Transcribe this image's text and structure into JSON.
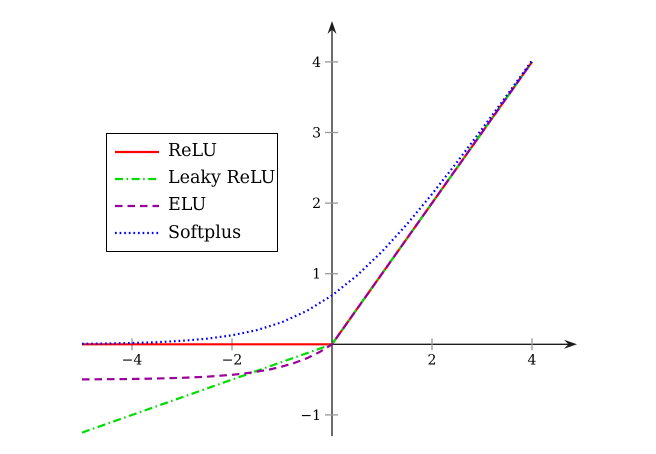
{
  "figure": {
    "background": "#ffffff",
    "axis": {
      "line_color": "#1c1c1c",
      "tick_color": "#999999",
      "tick_label_color": "#000000",
      "x_ticks": [
        -4,
        -2,
        2,
        4
      ],
      "x_tick_labels": [
        "−4",
        "−2",
        "2",
        "4"
      ],
      "y_ticks": [
        -1,
        1,
        2,
        3,
        4
      ],
      "y_tick_labels": [
        "−1",
        "1",
        "2",
        "3",
        "4"
      ]
    },
    "legend": {
      "border_color": "#000000",
      "background": "#ffffff"
    }
  },
  "chart_data": {
    "type": "line",
    "title": "",
    "xlabel": "",
    "ylabel": "",
    "xlim": [
      -5,
      4.9
    ],
    "ylim": [
      -1.3,
      4.58
    ],
    "grid": false,
    "legend_position": "upper left",
    "series": [
      {
        "name": "ReLU",
        "color": "#ff0000",
        "line_style": "solid",
        "x": [
          -5,
          0,
          4
        ],
        "y": [
          0,
          0,
          4
        ]
      },
      {
        "name": "Leaky ReLU",
        "color": "#00dc00",
        "line_style": "dashdot",
        "x": [
          -5,
          0,
          4
        ],
        "y": [
          -1.25,
          0,
          4
        ]
      },
      {
        "name": "ELU",
        "color": "#990099",
        "line_style": "dashed",
        "x": [
          -5,
          -4.5,
          -4,
          -3.5,
          -3,
          -2.5,
          -2,
          -1.75,
          -1.5,
          -1.25,
          -1,
          -0.75,
          -0.5,
          -0.25,
          0,
          4
        ],
        "y": [
          -0.497,
          -0.494,
          -0.491,
          -0.485,
          -0.475,
          -0.459,
          -0.432,
          -0.413,
          -0.388,
          -0.357,
          -0.316,
          -0.264,
          -0.197,
          -0.111,
          0,
          4
        ]
      },
      {
        "name": "Softplus",
        "color": "#0000ff",
        "line_style": "dotted",
        "x": [
          -5,
          -4.5,
          -4,
          -3.5,
          -3,
          -2.5,
          -2,
          -1.5,
          -1,
          -0.5,
          0,
          0.5,
          1,
          1.5,
          2,
          2.5,
          3,
          3.5,
          4
        ],
        "y": [
          0.007,
          0.011,
          0.018,
          0.03,
          0.049,
          0.079,
          0.127,
          0.201,
          0.313,
          0.474,
          0.693,
          0.974,
          1.313,
          1.701,
          2.127,
          2.579,
          3.049,
          3.53,
          4.018
        ]
      }
    ]
  }
}
